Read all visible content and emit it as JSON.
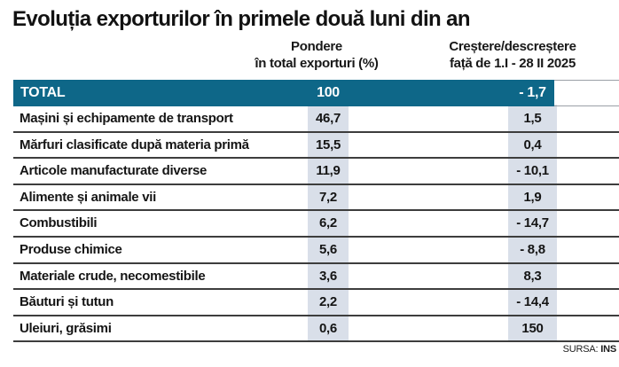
{
  "title": "Evoluția exporturilor în primele două luni din an",
  "columns": {
    "share_line1": "Pondere",
    "share_line2": "în total exporturi (%)",
    "change_line1": "Creștere/descreștere",
    "change_line2": "față de 1.I - 28 II 2025"
  },
  "total_row": {
    "label": "TOTAL",
    "share": "100",
    "change": "- 1,7"
  },
  "rows": [
    {
      "label": "Mașini și echipamente de transport",
      "share": "46,7",
      "change": "1,5"
    },
    {
      "label": "Mărfuri clasificate după materia primă",
      "share": "15,5",
      "change": "0,4"
    },
    {
      "label": "Articole manufacturate diverse",
      "share": "11,9",
      "change": "- 10,1"
    },
    {
      "label": "Alimente și animale vii",
      "share": "7,2",
      "change": "1,9"
    },
    {
      "label": "Combustibili",
      "share": "6,2",
      "change": "- 14,7"
    },
    {
      "label": "Produse chimice",
      "share": "5,6",
      "change": "- 8,8"
    },
    {
      "label": "Materiale crude, necomestibile",
      "share": "3,6",
      "change": "8,3"
    },
    {
      "label": "Băuturi și tutun",
      "share": "2,2",
      "change": "- 14,4"
    },
    {
      "label": "Uleiuri, grăsimi",
      "share": "0,6",
      "change": "150"
    }
  ],
  "source": {
    "label": "SURSA:",
    "value": "INS"
  },
  "colors": {
    "total_row_bg": "#0e6788",
    "value_band_bg": "#d9dfe9",
    "separator": "#3d3d3d",
    "text": "#151515"
  },
  "chart_data": {
    "type": "table",
    "title": "Evoluția exporturilor în primele două luni din an",
    "columns": [
      "Categorie",
      "Pondere în total exporturi (%)",
      "Creștere/descreștere față de 1.I - 28 II 2025"
    ],
    "rows": [
      [
        "TOTAL",
        100,
        -1.7
      ],
      [
        "Mașini și echipamente de transport",
        46.7,
        1.5
      ],
      [
        "Mărfuri clasificate după materia primă",
        15.5,
        0.4
      ],
      [
        "Articole manufacturate diverse",
        11.9,
        -10.1
      ],
      [
        "Alimente și animale vii",
        7.2,
        1.9
      ],
      [
        "Combustibili",
        6.2,
        -14.7
      ],
      [
        "Produse chimice",
        5.6,
        -8.8
      ],
      [
        "Materiale crude, necomestibile",
        3.6,
        8.3
      ],
      [
        "Băuturi și tutun",
        2.2,
        -14.4
      ],
      [
        "Uleiuri, grăsimi",
        0.6,
        150
      ]
    ],
    "source": "SURSA: INS",
    "legend_position": "none",
    "grid": "horizontal-separators"
  }
}
